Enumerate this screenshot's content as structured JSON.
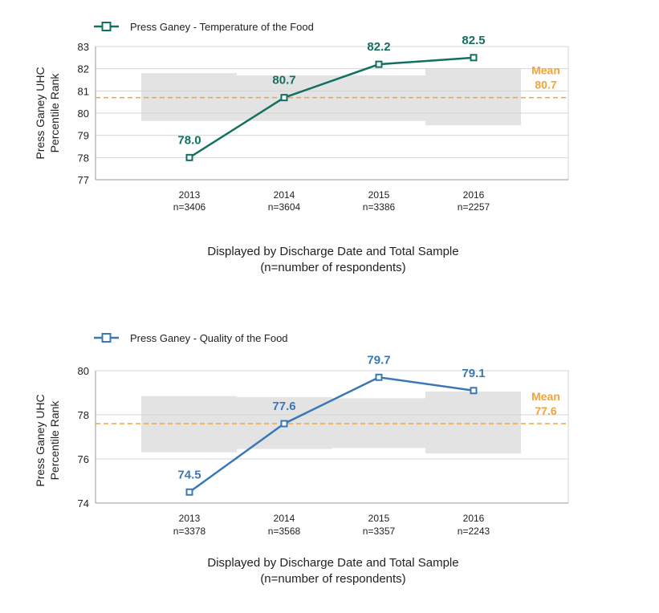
{
  "chart_data": [
    {
      "type": "line",
      "title": "Press Ganey - Temperature of the Food",
      "legend": "Press Ganey - Temperature of the Food",
      "ylabel": [
        "Press Ganey UHC",
        "Percentile Rank"
      ],
      "xlabel": [
        "Displayed by Discharge Date and Total Sample",
        "(n=number of respondents)"
      ],
      "categories": [
        "2013",
        "2014",
        "2015",
        "2016"
      ],
      "category_sublabels": [
        "n=3406",
        "n=3604",
        "n=3386",
        "n=2257"
      ],
      "values": [
        78.0,
        80.7,
        82.2,
        82.5
      ],
      "value_labels": [
        "78.0",
        "80.7",
        "82.2",
        "82.5"
      ],
      "ylim": [
        77,
        83
      ],
      "yticks": [
        77,
        78,
        79,
        80,
        81,
        82,
        83
      ],
      "ytick_labels": [
        "77",
        "78",
        "79",
        "80",
        "81",
        "82",
        "83"
      ],
      "grid": true,
      "mean": {
        "value": 80.7,
        "label": "Mean",
        "value_label": "80.7"
      },
      "reference_bands": [
        {
          "low": 79.65,
          "high": 81.8
        },
        {
          "low": 79.65,
          "high": 81.7
        },
        {
          "low": 79.65,
          "high": 81.7
        },
        {
          "low": 79.45,
          "high": 82.0
        }
      ],
      "colors": {
        "series": "#12705e",
        "mean": "#f2a33a",
        "band": "#e3e3e3",
        "grid": "#d4d4d4",
        "axis": "#9a9a9a",
        "text": "#222222"
      }
    },
    {
      "type": "line",
      "title": "Press Ganey - Quality of the Food",
      "legend": "Press Ganey - Quality of the Food",
      "ylabel": [
        "Press Ganey UHC",
        "Percentile Rank"
      ],
      "xlabel": [
        "Displayed by Discharge Date and Total Sample",
        "(n=number of respondents)"
      ],
      "categories": [
        "2013",
        "2014",
        "2015",
        "2016"
      ],
      "category_sublabels": [
        "n=3378",
        "n=3568",
        "n=3357",
        "n=2243"
      ],
      "values": [
        74.5,
        77.6,
        79.7,
        79.1
      ],
      "value_labels": [
        "74.5",
        "77.6",
        "79.7",
        "79.1"
      ],
      "ylim": [
        74,
        80
      ],
      "yticks": [
        74,
        76,
        78,
        80
      ],
      "ytick_labels": [
        "74",
        "76",
        "78",
        "80"
      ],
      "grid": true,
      "mean": {
        "value": 77.6,
        "label": "Mean",
        "value_label": "77.6"
      },
      "reference_bands": [
        {
          "low": 76.3,
          "high": 78.85
        },
        {
          "low": 76.45,
          "high": 78.8
        },
        {
          "low": 76.5,
          "high": 78.75
        },
        {
          "low": 76.25,
          "high": 79.05
        }
      ],
      "colors": {
        "series": "#3a78b5",
        "mean": "#f2a33a",
        "band": "#e3e3e3",
        "grid": "#d4d4d4",
        "axis": "#9a9a9a",
        "text": "#222222"
      }
    }
  ]
}
